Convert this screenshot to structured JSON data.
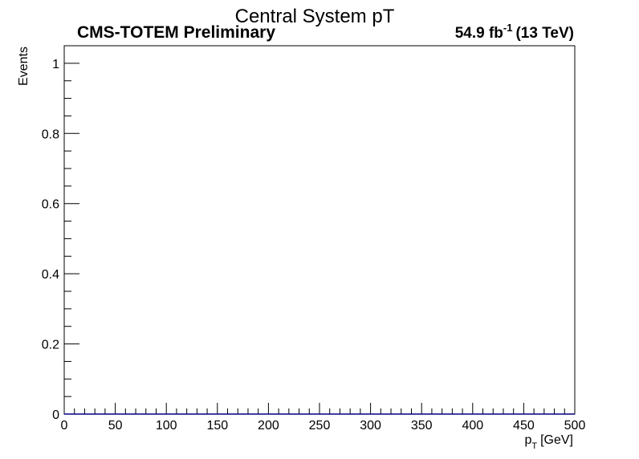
{
  "chart_data": {
    "type": "bar",
    "title": "Central System pT",
    "experiment_label": "CMS-TOTEM Preliminary",
    "lumi": {
      "value": "54.9 fb",
      "exponent": "-1",
      "energy": "(13 TeV)"
    },
    "ylabel": "Events",
    "xlabel": {
      "main": "p",
      "subscript": "T",
      "unit": "[GeV]"
    },
    "xlim": [
      0,
      500
    ],
    "ylim": [
      0,
      1.05
    ],
    "x_major_ticks": [
      0,
      50,
      100,
      150,
      200,
      250,
      300,
      350,
      400,
      450,
      500
    ],
    "x_tick_labels": [
      "0",
      "50",
      "100",
      "150",
      "200",
      "250",
      "300",
      "350",
      "400",
      "450",
      "500"
    ],
    "y_major_ticks": [
      0,
      0.2,
      0.4,
      0.6,
      0.8,
      1
    ],
    "y_tick_labels": [
      "0",
      "0.2",
      "0.4",
      "0.6",
      "0.8",
      "1"
    ],
    "x_minor_step": 10,
    "y_minor_step": 0.05,
    "bin_edges": [
      0,
      10,
      20,
      30,
      40,
      50,
      60,
      70,
      80,
      90,
      100,
      110,
      120,
      130,
      140,
      150,
      160,
      170,
      180,
      190,
      200,
      210,
      220,
      230,
      240,
      250,
      260,
      270,
      280,
      290,
      300,
      310,
      320,
      330,
      340,
      350,
      360,
      370,
      380,
      390,
      400,
      410,
      420,
      430,
      440,
      450,
      460,
      470,
      480,
      490,
      500
    ],
    "values": [
      0,
      0,
      0,
      0,
      0,
      0,
      0,
      0,
      0,
      0,
      0,
      0,
      0,
      0,
      0,
      0,
      0,
      0,
      0,
      0,
      0,
      0,
      0,
      0,
      0,
      0,
      0,
      0,
      0,
      0,
      0,
      0,
      0,
      0,
      0,
      0,
      0,
      0,
      0,
      0,
      0,
      0,
      0,
      0,
      0,
      0,
      0,
      0,
      0,
      0
    ],
    "series_color": "#000080",
    "grid": false
  }
}
